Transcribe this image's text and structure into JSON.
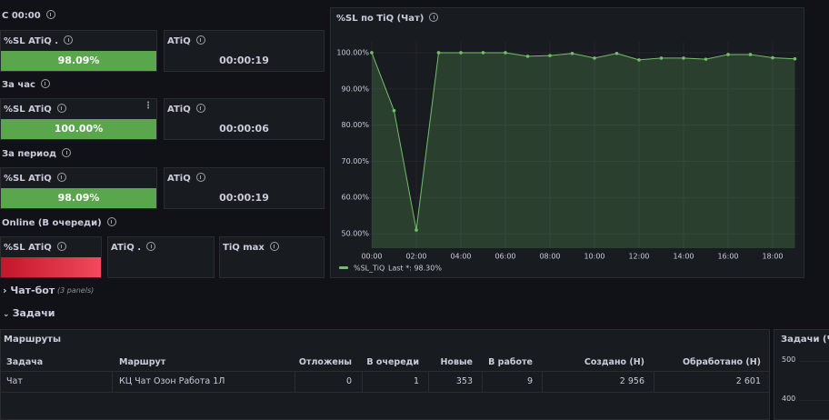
{
  "sections": [
    {
      "label": "С 00:00",
      "sl": {
        "title": "%SL ATiQ .",
        "value": "98.09%"
      },
      "atiq": {
        "title": "ATiQ",
        "value": "00:00:19"
      }
    },
    {
      "label": "За час",
      "sl": {
        "title": "%SL ATiQ",
        "value": "100.00%"
      },
      "atiq": {
        "title": "ATiQ",
        "value": "00:00:06"
      }
    },
    {
      "label": "За период",
      "sl": {
        "title": "%SL ATiQ",
        "value": "98.09%"
      },
      "atiq": {
        "title": "ATiQ",
        "value": "00:00:19"
      }
    }
  ],
  "online": {
    "label": "Online (В очереди)",
    "panels": [
      "%SL ATiQ",
      "ATiQ .",
      "TiQ max"
    ]
  },
  "chart_data": {
    "type": "line",
    "title": "%SL по TiQ (Чат)",
    "x": [
      0,
      1,
      2,
      3,
      4,
      5,
      6,
      7,
      8,
      9,
      10,
      11,
      12,
      13,
      14,
      15,
      16,
      17,
      18,
      19
    ],
    "xlim": [
      0,
      19
    ],
    "xticks": [
      {
        "value": 0,
        "label": "00:00"
      },
      {
        "value": 2,
        "label": "02:00"
      },
      {
        "value": 4,
        "label": "04:00"
      },
      {
        "value": 6,
        "label": "06:00"
      },
      {
        "value": 8,
        "label": "08:00"
      },
      {
        "value": 10,
        "label": "10:00"
      },
      {
        "value": 12,
        "label": "12:00"
      },
      {
        "value": 14,
        "label": "14:00"
      },
      {
        "value": 16,
        "label": "16:00"
      },
      {
        "value": 18,
        "label": "18:00"
      }
    ],
    "ylim": [
      46,
      103
    ],
    "yticks": [
      {
        "value": 50,
        "label": "50.00%"
      },
      {
        "value": 60,
        "label": "60.00%"
      },
      {
        "value": 70,
        "label": "70.00%"
      },
      {
        "value": 80,
        "label": "80.00%"
      },
      {
        "value": 90,
        "label": "90.00%"
      },
      {
        "value": 100,
        "label": "100.00%"
      }
    ],
    "grid": true,
    "series": [
      {
        "name": "%SL_TiQ",
        "color": "#73bf69",
        "legend_calc": "Last *: 98.30%",
        "values": [
          100,
          84,
          51,
          100,
          100,
          100,
          100,
          99,
          99.2,
          99.8,
          98.5,
          99.8,
          98,
          98.5,
          98.5,
          98.2,
          99.5,
          99.5,
          98.6,
          98.3
        ]
      }
    ]
  },
  "rows": [
    {
      "title": "Чат-бот",
      "note": "(3 panels)"
    },
    {
      "title": "Задачи"
    }
  ],
  "table": {
    "title": "Маршруты",
    "columns": [
      "Задача",
      "Маршрут",
      "Отложены",
      "В очереди",
      "Новые",
      "В работе",
      "Создано (Н)",
      "Обработано (Н)"
    ],
    "rows": [
      [
        "Чат",
        "КЦ Чат Озон Работа 1Л",
        0,
        1,
        353,
        9,
        "2 956",
        "2 601"
      ]
    ]
  },
  "side_panel": {
    "title": "Задачи (Чат",
    "yticks": [
      500,
      400
    ]
  }
}
